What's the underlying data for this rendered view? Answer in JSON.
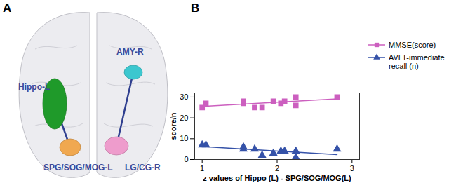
{
  "chart_data": {
    "type": "scatter",
    "panel_label": "B",
    "x_label": "z values of Hippo (L) - SPG/SOG/MOG(L)",
    "y_label": "score/n",
    "x": [
      1.0,
      1.05,
      1.55,
      1.55,
      1.7,
      1.8,
      1.95,
      2.05,
      2.1,
      2.25,
      2.25,
      2.8
    ],
    "series": [
      {
        "name": "MMSE(score)",
        "color": "#cc5fbf",
        "marker": "square",
        "line_style": "solid",
        "values": [
          25,
          27,
          27,
          28,
          25,
          25,
          28,
          27,
          28,
          26,
          30,
          30
        ]
      },
      {
        "name": "AVLT-immediate recall (n)",
        "color": "#3552a8",
        "marker": "triangle",
        "line_style": "solid",
        "values": [
          7,
          7,
          6,
          5,
          5,
          2,
          3,
          4,
          4,
          1,
          4,
          5
        ]
      }
    ],
    "xlim": [
      0.9,
      3.1
    ],
    "xticks": [
      1,
      2,
      3
    ],
    "ylim": [
      0,
      32
    ],
    "yticks": [
      0,
      10,
      20,
      30
    ],
    "grid": false,
    "legend": "top-right"
  },
  "diagram": {
    "panel_label": "A",
    "regions": [
      {
        "label": "Hippo-L",
        "color": "#1f9a2a"
      },
      {
        "label": "SPG/SOG/MOG-L",
        "color": "#f0a850"
      },
      {
        "label": "AMY-R",
        "color": "#3cc7cf"
      },
      {
        "label": "LG/CG-R",
        "color": "#ee9ccc"
      }
    ],
    "connections": [
      [
        "Hippo-L",
        "SPG/SOG/MOG-L"
      ],
      [
        "AMY-R",
        "LG/CG-R"
      ]
    ]
  }
}
